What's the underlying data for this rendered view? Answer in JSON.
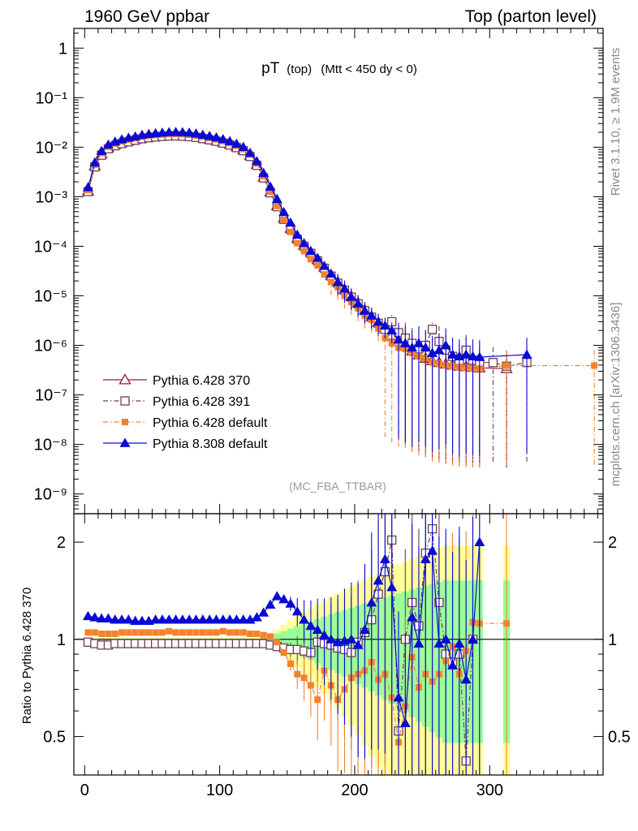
{
  "header": {
    "left": "1960 GeV ppbar",
    "right": "Top (parton level)"
  },
  "side_labels": {
    "rivet": "Rivet 3.1.10, ≥ 1.9M events",
    "ref": "mcplots.cern.ch [arXiv:1306.3436]"
  },
  "plot_title": {
    "main": "pT",
    "sub": "(top)",
    "cond": "(Mtt < 450 dy < 0)"
  },
  "watermark": "(MC_FBA_TTBAR)",
  "ratio_ylabel": "Ratio to Pythia 6.428 370",
  "colors": {
    "p370": "#9b1b30",
    "p391": "#6b3f54",
    "p6def": "#f5822a",
    "p8def": "#0a0ad6",
    "band_yellow": "#ffff99",
    "band_green": "#99ff99"
  },
  "chart_data": [
    {
      "type": "line",
      "panel": "main",
      "yscale": "log",
      "xlim": [
        -8,
        384
      ],
      "ylim": [
        4e-10,
        2.5
      ],
      "ytick_labels": [
        "1",
        "10⁻¹",
        "10⁻²",
        "10⁻³",
        "10⁻⁴",
        "10⁻⁵",
        "10⁻⁶",
        "10⁻⁷",
        "10⁻⁸",
        "10⁻⁹"
      ],
      "series": [
        {
          "name": "Pythia 6.428 370",
          "marker": "open-triangle",
          "style": "solid",
          "x": [
            2.5,
            7.5,
            12.5,
            17.5,
            22.5,
            27.5,
            32.5,
            37.5,
            42.5,
            47.5,
            52.5,
            57.5,
            62.5,
            67.5,
            72.5,
            77.5,
            82.5,
            87.5,
            92.5,
            97.5,
            102.5,
            107.5,
            112.5,
            117.5,
            122.5,
            127.5,
            132.5,
            137.5,
            142.5,
            147.5,
            152.5,
            157.5,
            162.5,
            167.5,
            172.5,
            177.5,
            182.5,
            187.5,
            192.5,
            197.5,
            202.5,
            207.5,
            212.5,
            217.5,
            222.5,
            227.5,
            232.5,
            237.5,
            242.5,
            247.5,
            252.5,
            257.5,
            262.5,
            267.5,
            272.5,
            277.5,
            282.5,
            287.5,
            292.5,
            312.5
          ],
          "y": [
            0.0013,
            0.0042,
            0.0073,
            0.0098,
            0.0113,
            0.0125,
            0.0135,
            0.0145,
            0.0155,
            0.0162,
            0.0168,
            0.0172,
            0.0175,
            0.0176,
            0.0174,
            0.017,
            0.0164,
            0.0155,
            0.0146,
            0.0137,
            0.0126,
            0.0115,
            0.0102,
            0.0088,
            0.0068,
            0.0045,
            0.0025,
            0.00125,
            0.00066,
            0.00037,
            0.00023,
            0.000145,
            0.000105,
            7.6e-05,
            5.4e-05,
            3.8e-05,
            2.6e-05,
            1.9e-05,
            1.35e-05,
            9.8e-06,
            7.2e-06,
            5.2e-06,
            3.8e-06,
            2.9e-06,
            2.2e-06,
            1.6e-06,
            1.2e-06,
            9.5e-07,
            7.7e-07,
            6.4e-07,
            5.5e-07,
            4.9e-07,
            4.5e-07,
            4.2e-07,
            4e-07,
            3.8e-07,
            3.7e-07,
            3.6e-07,
            3.5e-07,
            3.4e-07
          ]
        },
        {
          "name": "Pythia 6.428 391",
          "marker": "open-square",
          "style": "dashdot",
          "x": [
            2.5,
            7.5,
            12.5,
            17.5,
            22.5,
            27.5,
            32.5,
            37.5,
            42.5,
            47.5,
            52.5,
            57.5,
            62.5,
            67.5,
            72.5,
            77.5,
            82.5,
            87.5,
            92.5,
            97.5,
            102.5,
            107.5,
            112.5,
            117.5,
            122.5,
            127.5,
            132.5,
            137.5,
            142.5,
            147.5,
            152.5,
            157.5,
            162.5,
            167.5,
            172.5,
            177.5,
            182.5,
            187.5,
            192.5,
            197.5,
            202.5,
            207.5,
            212.5,
            217.5,
            222.5,
            227.5,
            232.5,
            237.5,
            242.5,
            247.5,
            252.5,
            257.5,
            262.5,
            267.5,
            272.5,
            277.5,
            282.5,
            287.5,
            292.5,
            302.5,
            312.5,
            327.5
          ],
          "y": [
            0.00127,
            0.004,
            0.0069,
            0.0093,
            0.0107,
            0.0118,
            0.0128,
            0.0138,
            0.0148,
            0.0155,
            0.0161,
            0.0165,
            0.0168,
            0.0169,
            0.0167,
            0.0163,
            0.0158,
            0.0149,
            0.0141,
            0.0132,
            0.0121,
            0.0111,
            0.0098,
            0.0085,
            0.0065,
            0.0043,
            0.0024,
            0.0012,
            0.00063,
            0.00035,
            0.00022,
            0.000138,
            0.0001,
            7.2e-05,
            5.1e-05,
            3.6e-05,
            2.5e-05,
            1.8e-05,
            1.3e-05,
            9.4e-06,
            6.9e-06,
            5e-06,
            3.7e-06,
            2.8e-06,
            2.1e-06,
            3e-06,
            1.8e-06,
            1.4e-06,
            1.1e-06,
            8.5e-07,
            1e-06,
            2.1e-06,
            1.2e-06,
            8e-07,
            6e-07,
            5e-07,
            8e-07,
            5e-07,
            4.5e-07,
            4.5e-07,
            3.8e-07,
            4.5e-07
          ]
        },
        {
          "name": "Pythia 6.428 default",
          "marker": "filled-square",
          "style": "dashdot",
          "x": [
            2.5,
            7.5,
            12.5,
            17.5,
            22.5,
            27.5,
            32.5,
            37.5,
            42.5,
            47.5,
            52.5,
            57.5,
            62.5,
            67.5,
            72.5,
            77.5,
            82.5,
            87.5,
            92.5,
            97.5,
            102.5,
            107.5,
            112.5,
            117.5,
            122.5,
            127.5,
            132.5,
            137.5,
            142.5,
            147.5,
            152.5,
            157.5,
            162.5,
            167.5,
            172.5,
            177.5,
            182.5,
            187.5,
            192.5,
            197.5,
            202.5,
            207.5,
            212.5,
            217.5,
            222.5,
            227.5,
            232.5,
            237.5,
            242.5,
            247.5,
            252.5,
            257.5,
            262.5,
            267.5,
            272.5,
            277.5,
            282.5,
            287.5,
            292.5,
            312.5,
            377.5
          ],
          "y": [
            0.00136,
            0.0044,
            0.0076,
            0.0102,
            0.0118,
            0.0131,
            0.0142,
            0.0152,
            0.0162,
            0.017,
            0.0176,
            0.018,
            0.0184,
            0.0185,
            0.0183,
            0.0179,
            0.0172,
            0.0163,
            0.0153,
            0.0144,
            0.0133,
            0.0121,
            0.0107,
            0.0092,
            0.0071,
            0.0047,
            0.0026,
            0.00127,
            0.00065,
            0.00034,
            0.000195,
            0.000115,
            8e-05,
            5.5e-05,
            4.1e-05,
            2.7e-05,
            1.9e-05,
            1.5e-05,
            1e-05,
            7.5e-06,
            5.6e-06,
            4e-06,
            3.3e-06,
            2.2e-06,
            1.4e-06,
            1.1e-06,
            9e-07,
            8.5e-07,
            7e-07,
            6e-07,
            5.5e-07,
            4.5e-07,
            4.2e-07,
            4e-07,
            3.8e-07,
            3.6e-07,
            3.5e-07,
            3.4e-07,
            3.4e-07,
            3.9e-07,
            3.9e-07
          ]
        },
        {
          "name": "Pythia 8.308 default",
          "marker": "filled-triangle",
          "style": "solid",
          "x": [
            2.5,
            7.5,
            12.5,
            17.5,
            22.5,
            27.5,
            32.5,
            37.5,
            42.5,
            47.5,
            52.5,
            57.5,
            62.5,
            67.5,
            72.5,
            77.5,
            82.5,
            87.5,
            92.5,
            97.5,
            102.5,
            107.5,
            112.5,
            117.5,
            122.5,
            127.5,
            132.5,
            137.5,
            142.5,
            147.5,
            152.5,
            157.5,
            162.5,
            167.5,
            172.5,
            177.5,
            182.5,
            187.5,
            192.5,
            197.5,
            202.5,
            207.5,
            212.5,
            217.5,
            222.5,
            227.5,
            232.5,
            237.5,
            242.5,
            247.5,
            252.5,
            257.5,
            262.5,
            267.5,
            272.5,
            277.5,
            282.5,
            287.5,
            292.5,
            327.5
          ],
          "y": [
            0.00155,
            0.0049,
            0.0084,
            0.0112,
            0.0129,
            0.0143,
            0.0155,
            0.0164,
            0.0177,
            0.0185,
            0.0191,
            0.0196,
            0.0201,
            0.0202,
            0.02,
            0.0196,
            0.0188,
            0.0178,
            0.0168,
            0.0157,
            0.0145,
            0.0132,
            0.0117,
            0.0101,
            0.0077,
            0.0052,
            0.003,
            0.0016,
            0.0009,
            0.00049,
            0.0003,
            0.00017,
            0.000115,
            8e-05,
            5.8e-05,
            4e-05,
            2.8e-05,
            1.9e-05,
            1.4e-05,
            9.5e-06,
            7e-06,
            5e-06,
            4e-06,
            3e-06,
            2.5e-06,
            2e-06,
            1.3e-06,
            1.1e-06,
            9e-07,
            1.1e-06,
            9e-07,
            7e-07,
            8e-07,
            1e-06,
            6.5e-07,
            6e-07,
            6.5e-07,
            6e-07,
            5.8e-07,
            6.5e-07
          ]
        }
      ]
    },
    {
      "type": "line",
      "panel": "ratio",
      "xlabel": "",
      "ylabel": "Ratio to Pythia 6.428 370",
      "xlim": [
        -8,
        384
      ],
      "ylim": [
        0.38,
        2.45
      ],
      "xtick_labels": [
        "0",
        "100",
        "200",
        "300"
      ],
      "ytick_labels": [
        "0.5",
        "1",
        "2"
      ],
      "reference_line": 1,
      "series": [
        {
          "name": "Pythia 6.428 391",
          "x": [
            2.5,
            7.5,
            12.5,
            17.5,
            22.5,
            27.5,
            32.5,
            37.5,
            42.5,
            47.5,
            52.5,
            57.5,
            62.5,
            67.5,
            72.5,
            77.5,
            82.5,
            87.5,
            92.5,
            97.5,
            102.5,
            107.5,
            112.5,
            117.5,
            122.5,
            127.5,
            132.5,
            137.5,
            142.5,
            147.5,
            152.5,
            157.5,
            162.5,
            167.5,
            172.5,
            177.5,
            182.5,
            187.5,
            192.5,
            197.5,
            202.5,
            207.5,
            212.5,
            217.5,
            222.5,
            227.5,
            232.5,
            237.5,
            242.5,
            247.5,
            252.5,
            257.5,
            262.5,
            267.5,
            272.5,
            277.5,
            282.5,
            287.5
          ],
          "y": [
            0.98,
            0.97,
            0.96,
            0.96,
            0.97,
            0.97,
            0.97,
            0.97,
            0.97,
            0.97,
            0.97,
            0.97,
            0.97,
            0.97,
            0.97,
            0.97,
            0.97,
            0.97,
            0.97,
            0.97,
            0.97,
            0.97,
            0.97,
            0.97,
            0.97,
            0.97,
            0.97,
            0.96,
            0.95,
            0.94,
            0.93,
            0.93,
            0.92,
            0.91,
            0.98,
            0.97,
            0.96,
            0.94,
            0.93,
            0.91,
            0.98,
            1.05,
            1.15,
            1.38,
            1.62,
            2.03,
            0.52,
            1.0,
            1.3,
            1.1,
            1.85,
            2.2,
            1.3,
            0.9,
            0.85,
            0.9,
            0.42,
            1.0
          ]
        },
        {
          "name": "Pythia 6.428 default",
          "x": [
            2.5,
            7.5,
            12.5,
            17.5,
            22.5,
            27.5,
            32.5,
            37.5,
            42.5,
            47.5,
            52.5,
            57.5,
            62.5,
            67.5,
            72.5,
            77.5,
            82.5,
            87.5,
            92.5,
            97.5,
            102.5,
            107.5,
            112.5,
            117.5,
            122.5,
            127.5,
            132.5,
            137.5,
            142.5,
            147.5,
            152.5,
            157.5,
            162.5,
            167.5,
            172.5,
            177.5,
            182.5,
            187.5,
            192.5,
            197.5,
            202.5,
            207.5,
            212.5,
            217.5,
            222.5,
            227.5,
            232.5,
            237.5,
            242.5,
            247.5,
            252.5,
            257.5,
            262.5,
            267.5,
            272.5,
            277.5,
            282.5,
            287.5,
            292.5,
            312.5
          ],
          "y": [
            1.05,
            1.05,
            1.04,
            1.04,
            1.04,
            1.05,
            1.05,
            1.05,
            1.05,
            1.05,
            1.05,
            1.05,
            1.06,
            1.05,
            1.05,
            1.05,
            1.05,
            1.05,
            1.05,
            1.05,
            1.06,
            1.05,
            1.05,
            1.05,
            1.04,
            1.04,
            1.03,
            1.02,
            0.98,
            0.91,
            0.84,
            0.78,
            0.76,
            0.72,
            0.65,
            0.8,
            0.72,
            0.65,
            0.7,
            0.76,
            0.78,
            0.8,
            0.85,
            0.75,
            0.78,
            0.66,
            0.48,
            0.62,
            0.88,
            0.71,
            0.78,
            0.74,
            0.78,
            0.86,
            0.95,
            0.78,
            0.92,
            1.13,
            1.12,
            1.12
          ]
        },
        {
          "name": "Pythia 8.308 default",
          "x": [
            2.5,
            7.5,
            12.5,
            17.5,
            22.5,
            27.5,
            32.5,
            37.5,
            42.5,
            47.5,
            52.5,
            57.5,
            62.5,
            67.5,
            72.5,
            77.5,
            82.5,
            87.5,
            92.5,
            97.5,
            102.5,
            107.5,
            112.5,
            117.5,
            122.5,
            127.5,
            132.5,
            137.5,
            142.5,
            147.5,
            152.5,
            157.5,
            162.5,
            167.5,
            172.5,
            177.5,
            182.5,
            187.5,
            192.5,
            197.5,
            202.5,
            207.5,
            212.5,
            217.5,
            222.5,
            227.5,
            232.5,
            237.5,
            242.5,
            247.5,
            252.5,
            257.5,
            262.5,
            267.5,
            272.5,
            277.5,
            282.5,
            287.5,
            292.5
          ],
          "y": [
            1.18,
            1.17,
            1.16,
            1.16,
            1.15,
            1.15,
            1.15,
            1.14,
            1.14,
            1.14,
            1.15,
            1.15,
            1.15,
            1.15,
            1.15,
            1.15,
            1.15,
            1.15,
            1.15,
            1.15,
            1.15,
            1.15,
            1.15,
            1.15,
            1.15,
            1.17,
            1.21,
            1.28,
            1.36,
            1.33,
            1.29,
            1.22,
            1.15,
            1.1,
            1.07,
            1.03,
            1.0,
            0.98,
            0.99,
            1.0,
            0.96,
            1.07,
            1.3,
            1.52,
            1.77,
            1.45,
            0.66,
            0.55,
            1.17,
            0.97,
            1.77,
            1.88,
            0.97,
            1.0,
            0.83,
            0.97,
            0.75,
            1.0,
            2.0
          ]
        }
      ]
    }
  ]
}
